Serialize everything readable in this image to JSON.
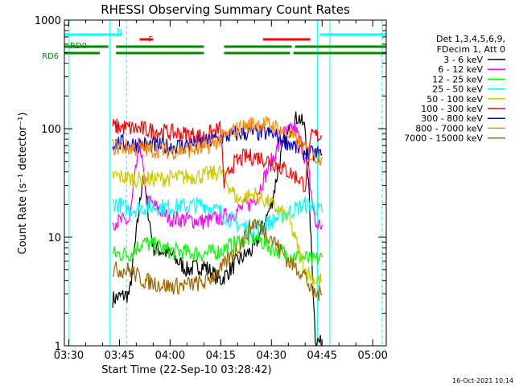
{
  "chart_data": {
    "type": "line",
    "title": "RHESSI Observing Summary Count Rates",
    "xlabel": "Start Time (22-Sep-10 03:28:42)",
    "ylabel": "Count Rate (s⁻¹ detector⁻¹)",
    "yscale": "log",
    "ylim": [
      1,
      1000
    ],
    "xlim_minutes": [
      208.7,
      304
    ],
    "x_tick_labels": [
      "03:30",
      "03:45",
      "04:00",
      "04:15",
      "04:30",
      "04:45",
      "05:00"
    ],
    "y_tick_labels": [
      "1",
      "10",
      "100",
      "1000"
    ],
    "legend_header": [
      "Det 1,3,4,5,6,9,",
      "FDecim 1, Att 0"
    ],
    "series": [
      {
        "name": "3 - 6 keV",
        "color": "#000000",
        "points": [
          [
            223,
            2.7
          ],
          [
            228,
            3
          ],
          [
            232,
            38
          ],
          [
            235,
            8
          ],
          [
            240,
            7
          ],
          [
            245,
            5
          ],
          [
            250,
            5.5
          ],
          [
            255,
            4
          ],
          [
            260,
            6
          ],
          [
            265,
            8
          ],
          [
            270,
            20
          ],
          [
            273,
            60
          ],
          [
            276,
            110
          ],
          [
            278,
            130
          ],
          [
            280,
            100
          ],
          [
            281,
            30
          ],
          [
            283,
            1.2
          ],
          [
            285,
            1
          ]
        ]
      },
      {
        "name": "6 - 12 keV",
        "color": "#ff00ff",
        "points": [
          [
            223,
            14
          ],
          [
            228,
            14
          ],
          [
            231,
            80
          ],
          [
            233,
            22
          ],
          [
            240,
            15
          ],
          [
            250,
            14
          ],
          [
            258,
            16
          ],
          [
            265,
            22
          ],
          [
            270,
            50
          ],
          [
            274,
            90
          ],
          [
            277,
            100
          ],
          [
            279,
            70
          ],
          [
            281,
            40
          ],
          [
            283,
            13
          ],
          [
            285,
            13
          ]
        ]
      },
      {
        "name": "12 - 25 keV",
        "color": "#00ff00",
        "points": [
          [
            223,
            7
          ],
          [
            228,
            7
          ],
          [
            232,
            9
          ],
          [
            240,
            7.5
          ],
          [
            250,
            7
          ],
          [
            255,
            7.5
          ],
          [
            260,
            9
          ],
          [
            265,
            10
          ],
          [
            270,
            8
          ],
          [
            275,
            7
          ],
          [
            280,
            6.5
          ],
          [
            282,
            6
          ],
          [
            285,
            6.5
          ]
        ]
      },
      {
        "name": "25 - 50 keV",
        "color": "#00ffff",
        "points": [
          [
            223,
            21
          ],
          [
            228,
            18
          ],
          [
            233,
            19
          ],
          [
            240,
            19
          ],
          [
            250,
            20
          ],
          [
            255,
            17
          ],
          [
            260,
            13
          ],
          [
            265,
            12
          ],
          [
            270,
            14
          ],
          [
            275,
            17
          ],
          [
            280,
            20
          ],
          [
            283,
            19
          ],
          [
            285,
            17
          ]
        ]
      },
      {
        "name": "50 - 100 keV",
        "color": "#cccc00",
        "points": [
          [
            223,
            37
          ],
          [
            230,
            34
          ],
          [
            240,
            35
          ],
          [
            250,
            37
          ],
          [
            255,
            40
          ],
          [
            260,
            22
          ],
          [
            265,
            25
          ],
          [
            270,
            20
          ],
          [
            275,
            15
          ],
          [
            280,
            5
          ],
          [
            283,
            4
          ],
          [
            285,
            4
          ]
        ]
      },
      {
        "name": "100 - 300 keV",
        "color": "#ff0000",
        "points": [
          [
            223,
            105
          ],
          [
            230,
            100
          ],
          [
            240,
            92
          ],
          [
            250,
            85
          ],
          [
            255,
            100
          ],
          [
            256,
            30
          ],
          [
            258,
            45
          ],
          [
            262,
            55
          ],
          [
            266,
            55
          ],
          [
            270,
            50
          ],
          [
            275,
            40
          ],
          [
            278,
            35
          ],
          [
            280,
            30
          ],
          [
            282,
            88
          ],
          [
            285,
            85
          ]
        ]
      },
      {
        "name": "300 - 800 keV",
        "color": "#0000cc",
        "points": [
          [
            223,
            74
          ],
          [
            230,
            72
          ],
          [
            240,
            68
          ],
          [
            250,
            74
          ],
          [
            255,
            82
          ],
          [
            260,
            90
          ],
          [
            265,
            92
          ],
          [
            270,
            90
          ],
          [
            275,
            75
          ],
          [
            278,
            65
          ],
          [
            280,
            60
          ],
          [
            282,
            58
          ],
          [
            285,
            58
          ]
        ]
      },
      {
        "name": "800 - 7000 keV",
        "color": "#ff8800",
        "points": [
          [
            223,
            68
          ],
          [
            230,
            66
          ],
          [
            240,
            62
          ],
          [
            250,
            65
          ],
          [
            255,
            80
          ],
          [
            260,
            100
          ],
          [
            265,
            112
          ],
          [
            270,
            108
          ],
          [
            275,
            90
          ],
          [
            278,
            75
          ],
          [
            280,
            65
          ],
          [
            282,
            56
          ],
          [
            285,
            55
          ]
        ]
      },
      {
        "name": "7000 - 15000 keV",
        "color": "#996600",
        "points": [
          [
            223,
            5
          ],
          [
            228,
            5
          ],
          [
            232,
            4
          ],
          [
            240,
            3.5
          ],
          [
            250,
            3.8
          ],
          [
            255,
            5
          ],
          [
            260,
            8
          ],
          [
            265,
            14
          ],
          [
            270,
            10
          ],
          [
            275,
            6
          ],
          [
            280,
            4.5
          ],
          [
            282,
            3
          ],
          [
            285,
            3
          ]
        ]
      }
    ],
    "bars": [
      {
        "label": "N",
        "color": "#00ffff",
        "start": 208.7,
        "end": 225.6
      },
      {
        "label": "F",
        "color": "#ff0000",
        "start": 231,
        "end": 235
      },
      {
        "label": "",
        "color": "#ff0000",
        "start": 267.5,
        "end": 281.5
      },
      {
        "label": "",
        "color": "#00ffff",
        "start": 284.3,
        "end": 304
      }
    ],
    "rd_bars": [
      {
        "label": "RD0",
        "color": "#008800",
        "segments": [
          [
            208.7,
            221.7
          ],
          [
            224,
            250
          ],
          [
            256,
            276
          ],
          [
            277,
            304
          ]
        ]
      },
      {
        "label": "RD6",
        "color": "#008800",
        "segments": [
          [
            208.7,
            219.2
          ],
          [
            224,
            250
          ],
          [
            256,
            275.5
          ],
          [
            276.5,
            304
          ]
        ]
      }
    ],
    "vlines": [
      {
        "minute": 210.1,
        "style": "solid"
      },
      {
        "minute": 222.1,
        "style": "solid"
      },
      {
        "minute": 227.1,
        "style": "dashed"
      },
      {
        "minute": 283.6,
        "style": "solid"
      },
      {
        "minute": 287.3,
        "style": "solid"
      },
      {
        "minute": 302.8,
        "style": "dashed"
      }
    ]
  },
  "footer": "16-Oct-2021 10:14"
}
